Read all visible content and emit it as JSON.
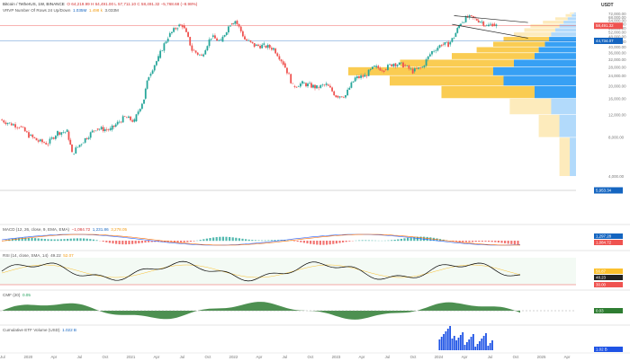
{
  "header": {
    "currency": "USDT",
    "legend_main": {
      "symbol": "Bitcoin / TetherUS, 1W, BINANCE",
      "ohlc": "O 64,219.99  H 64,491.00  L 57,711.10  C 58,491.32  −5,768.68 (−8.98%)"
    },
    "legend_vrvp": "VRVP Number Of Rows 24 Up/Down",
    "vrvp_values": [
      "1.035M",
      "1.498 k",
      "3.033M"
    ]
  },
  "panes": {
    "macd": {
      "label": "MACD (12, 26, close, 9, EMA, EMA)",
      "values": [
        "−1,084.72",
        "1,231.86",
        "3,278.05"
      ],
      "tags": [
        "1,297.28",
        "1,084.72"
      ]
    },
    "rsi": {
      "label": "RSI (14, close, SMA, 14)",
      "value": "49.22",
      "value2": "52.07",
      "tags": [
        "56.87",
        "48.23",
        "30.00"
      ]
    },
    "cmf": {
      "label": "CMF (20)",
      "value": "0.05",
      "tag": "0.03"
    },
    "etf": {
      "label": "Cumulative ETF Volume (USD)",
      "value": "1.022 B",
      "tag": "1.02 B"
    }
  },
  "chart_data": {
    "type": "line",
    "title": "Bitcoin / TetherUS, 1W, BINANCE",
    "ylabel": "USDT",
    "y_ticks": [
      4000,
      8000,
      12000,
      16000,
      20000,
      24000,
      28000,
      32000,
      36000,
      40000,
      44000,
      48000,
      52000,
      56000,
      60000,
      64000,
      68000,
      72000
    ],
    "y_tick_labels": [
      "4,000.00",
      "8,000.00",
      "12,000.00",
      "16,000.00",
      "20,000.00",
      "24,000.00",
      "28,000.00",
      "32,000.00",
      "36,000.00",
      "40,000.00",
      "44,000.00",
      "48,000.00",
      "52,000.00",
      "56,000.00",
      "60,000.00",
      "64,000.00",
      "68,000.00",
      "72,000.00"
    ],
    "x_labels": [
      "Jul",
      "2020",
      "Apr",
      "Jul",
      "Oct",
      "2021",
      "Apr",
      "Jul",
      "Oct",
      "2022",
      "Apr",
      "Jul",
      "Oct",
      "2023",
      "Apr",
      "Jul",
      "Oct",
      "2024",
      "Apr",
      "Jul",
      "Oct",
      "2025",
      "Apr"
    ],
    "x_range": [
      2019.45,
      2025.45
    ],
    "ylim": [
      2000,
      74000
    ],
    "series": [
      {
        "x": [
          2019.45,
          2019.55,
          2019.65,
          2019.75,
          2019.85,
          2019.95,
          2020.05,
          2020.15,
          2020.2,
          2020.3,
          2020.45,
          2020.6,
          2020.75,
          2020.85,
          2020.95,
          2021.0,
          2021.1,
          2021.2,
          2021.3,
          2021.35,
          2021.45,
          2021.55,
          2021.65,
          2021.75,
          2021.85,
          2021.9,
          2022.0,
          2022.1,
          2022.2,
          2022.3,
          2022.4,
          2022.5,
          2022.6,
          2022.75,
          2022.85,
          2022.95,
          2023.05,
          2023.15,
          2023.25,
          2023.35,
          2023.45,
          2023.55,
          2023.65,
          2023.75,
          2023.85,
          2023.95,
          2024.05,
          2024.12,
          2024.18,
          2024.25,
          2024.32,
          2024.4,
          2024.47,
          2024.52,
          2024.58,
          2024.62
        ],
        "values": [
          11000,
          10300,
          9800,
          8300,
          7500,
          7200,
          8800,
          8900,
          6000,
          7300,
          9400,
          9200,
          11500,
          10700,
          16000,
          24000,
          33000,
          48000,
          58000,
          59000,
          38000,
          34000,
          48000,
          44000,
          61000,
          64000,
          46000,
          41000,
          41000,
          39000,
          30000,
          20000,
          21000,
          19500,
          20500,
          16800,
          17000,
          23000,
          24000,
          28000,
          27000,
          30000,
          29000,
          26000,
          28000,
          37000,
          42000,
          42000,
          48000,
          62000,
          68000,
          66000,
          63000,
          58000,
          60500,
          58500
        ]
      }
    ],
    "annotations": {
      "horizontal_levels": [
        58491.32,
        44734.07
      ],
      "level_labels": [
        "58,491.32",
        "44,734.07"
      ],
      "extra_label": "5,953.34"
    },
    "volume_profile": {
      "price_bins": [
        4000,
        8000,
        12000,
        16000,
        20000,
        24000,
        28000,
        32000,
        36000,
        40000,
        44000,
        48000,
        52000,
        56000,
        60000,
        64000,
        68000,
        72000
      ],
      "up_volume": [
        0.05,
        0.1,
        0.2,
        0.45,
        0.55,
        0.7,
        0.55,
        0.4,
        0.3,
        0.25,
        0.22,
        0.18,
        0.15,
        0.14,
        0.1,
        0.06,
        0.03,
        0.02
      ],
      "down_volume": [
        0.03,
        0.08,
        0.12,
        0.2,
        0.35,
        0.4,
        0.3,
        0.2,
        0.18,
        0.15,
        0.13,
        0.12,
        0.1,
        0.08,
        0.06,
        0.04,
        0.02,
        0.01
      ]
    },
    "grid": false
  },
  "colors": {
    "up": "#26a69a",
    "down": "#ef5350",
    "price_tag": "#ef5350",
    "level_tag": "#1565c0",
    "macd": "#2962ff",
    "signal": "#ff6d00",
    "rsi": "#000000",
    "cmf": "#2e7d32",
    "etf": "#1e53e5",
    "vp_up": "#f9c73f",
    "vp_down": "#2196f3"
  }
}
